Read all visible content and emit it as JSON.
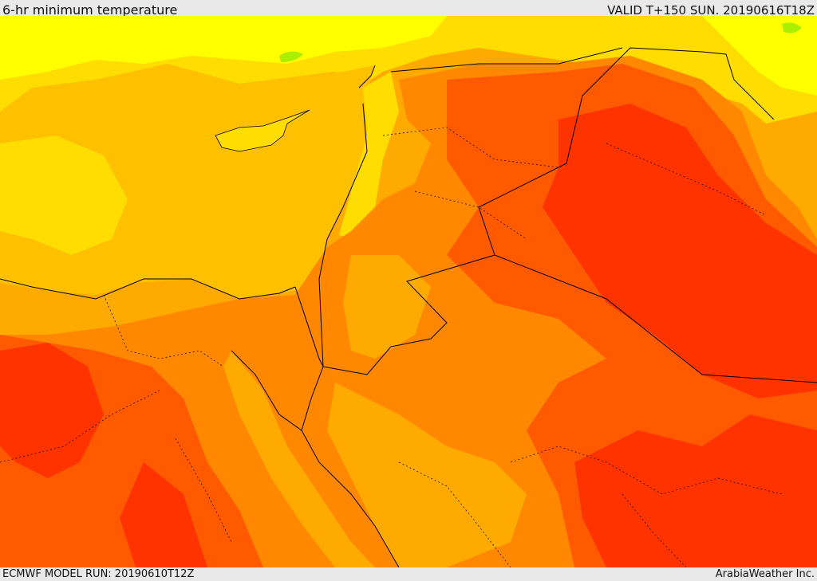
{
  "header": {
    "title": "6-hr minimum temperature",
    "valid": "VALID T+150 SUN. 20190616T18Z"
  },
  "footer": {
    "model_run": "ECMWF MODEL RUN: 20190610T12Z",
    "credit": "ArabiaWeather Inc."
  },
  "colors": {
    "light_yellow": "#ffff00",
    "yellow": "#ffdd00",
    "gold": "#ffc000",
    "orange": "#ffaa00",
    "dark_orange": "#ff8800",
    "red_orange": "#ff5a00",
    "red": "#ff3300",
    "green_patch": "#99ee00",
    "border": "#000000"
  }
}
